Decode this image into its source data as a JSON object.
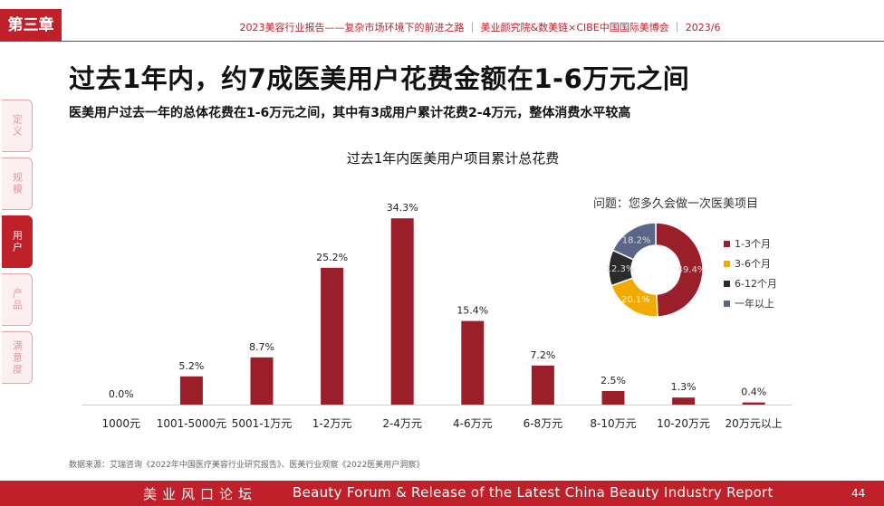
{
  "header": {
    "chapter": "第三章",
    "report_line": "2023美容行业报告——复杂市场环境下的前进之路 ｜ 美业颜究院&数美链×CIBE中国国际美博会 ｜ 2023/6"
  },
  "title": "过去1年内，约7成医美用户花费金额在1-6万元之间",
  "subtitle": "医美用户过去一年的总体花费在1-6万元之间，其中有3成用户累计花费2-4万元，整体消费水平较高",
  "side_tabs": [
    {
      "label": "定义",
      "active": false
    },
    {
      "label": "规模",
      "active": false
    },
    {
      "label": "用户",
      "active": true
    },
    {
      "label": "产品",
      "active": false
    },
    {
      "label": "满意度",
      "active": false
    }
  ],
  "colors": {
    "accent": "#c0202a",
    "bar": "#9b1f2a"
  },
  "chart_data": [
    {
      "type": "bar",
      "title": "过去1年内医美用户项目累计总花费",
      "categories": [
        "1000元",
        "1001-5000元",
        "5001-1万元",
        "1-2万元",
        "2-4万元",
        "4-6万元",
        "6-8万元",
        "8-10万元",
        "10-20万元",
        "20万元以上"
      ],
      "values": [
        0.0,
        5.2,
        8.7,
        25.2,
        34.3,
        15.4,
        7.2,
        2.5,
        1.3,
        0.4
      ],
      "value_labels": [
        "0.0%",
        "5.2%",
        "8.7%",
        "25.2%",
        "34.3%",
        "15.4%",
        "7.2%",
        "2.5%",
        "1.3%",
        "0.4%"
      ],
      "unit": "%",
      "ylim": [
        0,
        40
      ],
      "grid": false
    },
    {
      "type": "pie",
      "title": "问题：您多久会做一次医美项目",
      "categories": [
        "1-3个月",
        "3-6个月",
        "6-12个月",
        "一年以上"
      ],
      "values": [
        49.4,
        20.1,
        12.3,
        18.2
      ],
      "value_labels": [
        "49.4%",
        "20.1%",
        "12.3%",
        "18.2%"
      ],
      "colors": [
        "#9b1f2a",
        "#f2a900",
        "#2b2b2b",
        "#5b6587"
      ],
      "legend_position": "right"
    }
  ],
  "source": "数据来源：艾瑞咨询《2022年中国医疗美容行业研究报告》、医美行业观察《2022医美用户洞察》",
  "footer": {
    "left": "美业风口论坛",
    "center": "Beauty Forum & Release of the Latest China Beauty Industry Report",
    "page": "44"
  }
}
